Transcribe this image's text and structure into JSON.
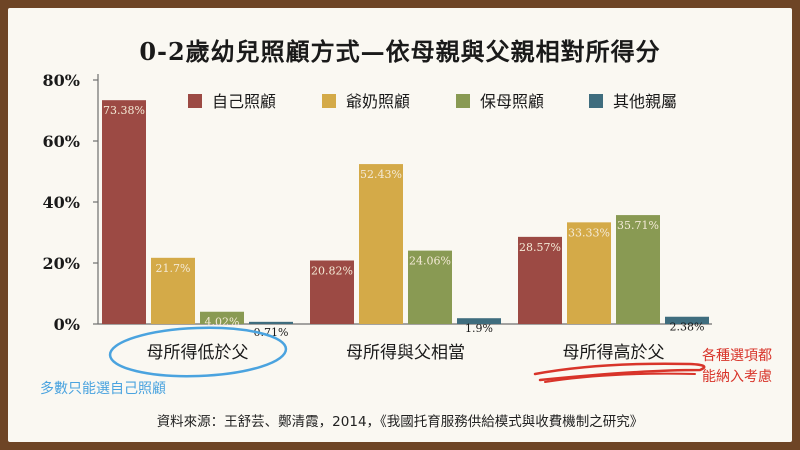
{
  "chart_data": {
    "type": "bar",
    "title": "0-2歲幼兒照顧方式—依母親與父親相對所得分",
    "categories": [
      "母所得低於父",
      "母所得與父相當",
      "母所得高於父"
    ],
    "series": [
      {
        "name": "自己照顧",
        "values": [
          73.38,
          20.82,
          28.57
        ],
        "labels": [
          "73.38%",
          "20.82%",
          "28.57%"
        ],
        "color": "#9c4a44"
      },
      {
        "name": "爺奶照顧",
        "values": [
          21.7,
          52.43,
          33.33
        ],
        "labels": [
          "21.7%",
          "52.43%",
          "33.33%"
        ],
        "color": "#d4aa48"
      },
      {
        "name": "保母照顧",
        "values": [
          4.02,
          24.06,
          35.71
        ],
        "labels": [
          "4.02%",
          "24.06%",
          "35.71%"
        ],
        "color": "#899a53"
      },
      {
        "name": "其他親屬",
        "values": [
          0.71,
          1.9,
          2.38
        ],
        "labels": [
          "0.71%",
          "1.9%",
          "2.38%"
        ],
        "color": "#3f6d7e"
      }
    ],
    "yticks": [
      "0%",
      "20%",
      "40%",
      "60%",
      "80%"
    ],
    "ylim": [
      0,
      80
    ],
    "legend_position": "top-right",
    "grid": false
  },
  "annotations": {
    "left_note": "多數只能選自己照顧",
    "right_note_line1": "各種選項都",
    "right_note_line2": "能納入考慮"
  },
  "colors": {
    "annotation_blue": "#4aa3df",
    "annotation_red": "#d8342a",
    "axis": "#6f6f6f"
  },
  "source": "資料來源：王舒芸、鄭清霞，2014，《我國托育服務供給模式與收費機制之研究》"
}
